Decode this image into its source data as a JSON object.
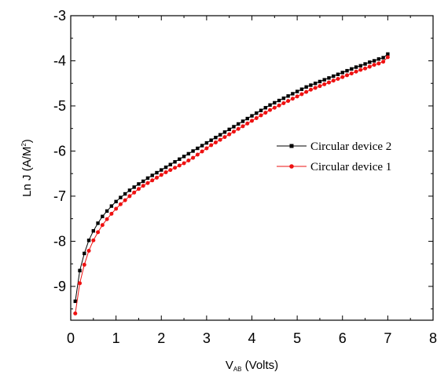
{
  "chart_data": {
    "type": "line",
    "xlabel": {
      "main": "V",
      "sub": "AB",
      "rest": " (Volts)"
    },
    "ylabel": {
      "main": "Ln J (A/M",
      "sup": "2",
      "rest": ")"
    },
    "xlim": [
      0,
      8
    ],
    "ylim": [
      -9.75,
      -3
    ],
    "xticks": [
      0,
      1,
      2,
      3,
      4,
      5,
      6,
      7,
      8
    ],
    "yticks": [
      -9,
      -8,
      -7,
      -6,
      -5,
      -4,
      -3
    ],
    "grid": false,
    "legend_position": "center-right",
    "series": [
      {
        "name": "Circular device 2",
        "color": "#000000",
        "marker": "square",
        "x": [
          0.1,
          0.2,
          0.3,
          0.4,
          0.5,
          0.6,
          0.7,
          0.8,
          0.9,
          1.0,
          1.1,
          1.2,
          1.3,
          1.4,
          1.5,
          1.6,
          1.7,
          1.8,
          1.9,
          2.0,
          2.1,
          2.2,
          2.3,
          2.4,
          2.5,
          2.6,
          2.7,
          2.8,
          2.9,
          3.0,
          3.1,
          3.2,
          3.3,
          3.4,
          3.5,
          3.6,
          3.7,
          3.8,
          3.9,
          4.0,
          4.1,
          4.2,
          4.3,
          4.4,
          4.5,
          4.6,
          4.7,
          4.8,
          4.9,
          5.0,
          5.1,
          5.2,
          5.3,
          5.4,
          5.5,
          5.6,
          5.7,
          5.8,
          5.9,
          6.0,
          6.1,
          6.2,
          6.3,
          6.4,
          6.5,
          6.6,
          6.7,
          6.8,
          6.9,
          7.0
        ],
        "y": [
          -9.33,
          -8.65,
          -8.27,
          -7.98,
          -7.77,
          -7.6,
          -7.45,
          -7.33,
          -7.22,
          -7.12,
          -7.03,
          -6.95,
          -6.87,
          -6.8,
          -6.73,
          -6.67,
          -6.6,
          -6.54,
          -6.48,
          -6.42,
          -6.36,
          -6.3,
          -6.24,
          -6.18,
          -6.12,
          -6.06,
          -6.0,
          -5.94,
          -5.88,
          -5.82,
          -5.76,
          -5.7,
          -5.64,
          -5.58,
          -5.52,
          -5.46,
          -5.4,
          -5.34,
          -5.28,
          -5.22,
          -5.16,
          -5.1,
          -5.04,
          -4.98,
          -4.93,
          -4.88,
          -4.83,
          -4.78,
          -4.73,
          -4.68,
          -4.63,
          -4.58,
          -4.54,
          -4.5,
          -4.46,
          -4.42,
          -4.38,
          -4.34,
          -4.3,
          -4.26,
          -4.22,
          -4.18,
          -4.14,
          -4.11,
          -4.07,
          -4.03,
          -4.0,
          -3.96,
          -3.93,
          -3.85
        ]
      },
      {
        "name": "Circular device 1",
        "color": "#ee1111",
        "marker": "circle",
        "x": [
          0.1,
          0.2,
          0.3,
          0.4,
          0.5,
          0.6,
          0.7,
          0.8,
          0.9,
          1.0,
          1.1,
          1.2,
          1.3,
          1.4,
          1.5,
          1.6,
          1.7,
          1.8,
          1.9,
          2.0,
          2.1,
          2.2,
          2.3,
          2.4,
          2.5,
          2.6,
          2.7,
          2.8,
          2.9,
          3.0,
          3.1,
          3.2,
          3.3,
          3.4,
          3.5,
          3.6,
          3.7,
          3.8,
          3.9,
          4.0,
          4.1,
          4.2,
          4.3,
          4.4,
          4.5,
          4.6,
          4.7,
          4.8,
          4.9,
          5.0,
          5.1,
          5.2,
          5.3,
          5.4,
          5.5,
          5.6,
          5.7,
          5.8,
          5.9,
          6.0,
          6.1,
          6.2,
          6.3,
          6.4,
          6.5,
          6.6,
          6.7,
          6.8,
          6.9,
          7.0
        ],
        "y": [
          -9.6,
          -8.93,
          -8.52,
          -8.21,
          -7.98,
          -7.8,
          -7.64,
          -7.51,
          -7.39,
          -7.28,
          -7.18,
          -7.09,
          -7.0,
          -6.92,
          -6.84,
          -6.77,
          -6.71,
          -6.65,
          -6.59,
          -6.53,
          -6.47,
          -6.42,
          -6.37,
          -6.32,
          -6.27,
          -6.21,
          -6.15,
          -6.08,
          -6.01,
          -5.94,
          -5.87,
          -5.81,
          -5.75,
          -5.69,
          -5.63,
          -5.57,
          -5.51,
          -5.45,
          -5.39,
          -5.33,
          -5.27,
          -5.21,
          -5.15,
          -5.09,
          -5.04,
          -4.99,
          -4.94,
          -4.89,
          -4.84,
          -4.79,
          -4.74,
          -4.69,
          -4.64,
          -4.6,
          -4.56,
          -4.52,
          -4.48,
          -4.44,
          -4.4,
          -4.36,
          -4.32,
          -4.28,
          -4.24,
          -4.2,
          -4.17,
          -4.13,
          -4.09,
          -4.06,
          -4.02,
          -3.92
        ]
      }
    ]
  }
}
